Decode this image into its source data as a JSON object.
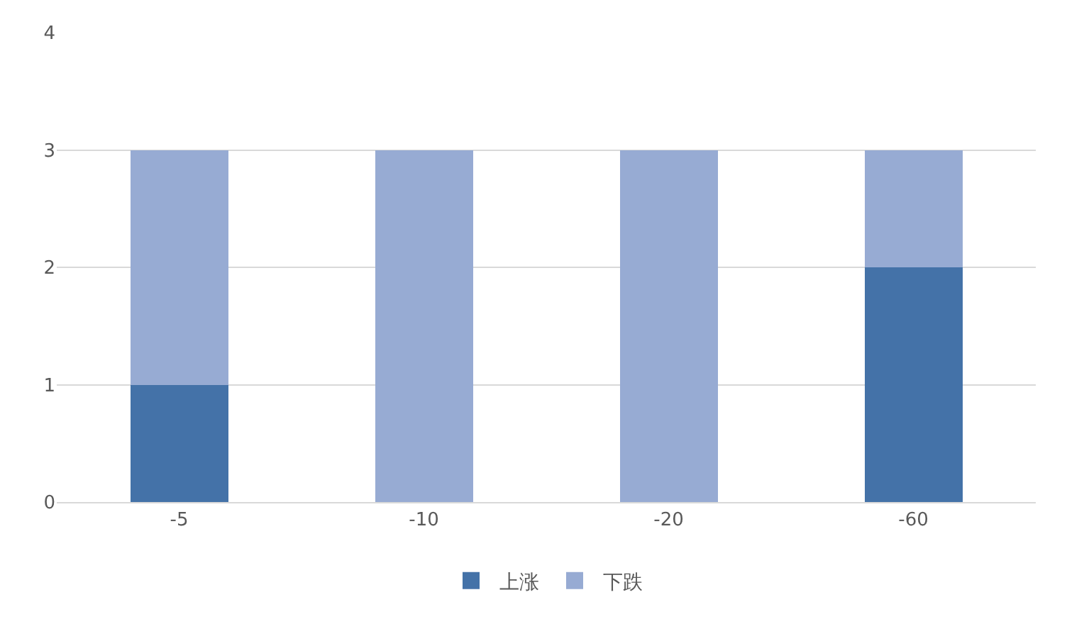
{
  "chart_data": {
    "type": "bar",
    "stacked": true,
    "categories": [
      "-5",
      "-10",
      "-20",
      "-60"
    ],
    "series": [
      {
        "name": "上涨",
        "color": "#4472a8",
        "values": [
          1,
          0,
          0,
          2
        ]
      },
      {
        "name": "下跌",
        "color": "#97abd3",
        "values": [
          2,
          3,
          3,
          1
        ]
      }
    ],
    "ylim": [
      0,
      4
    ],
    "yticks": [
      0,
      1,
      2,
      3,
      4
    ],
    "grid": "y",
    "legend": "bottom"
  }
}
